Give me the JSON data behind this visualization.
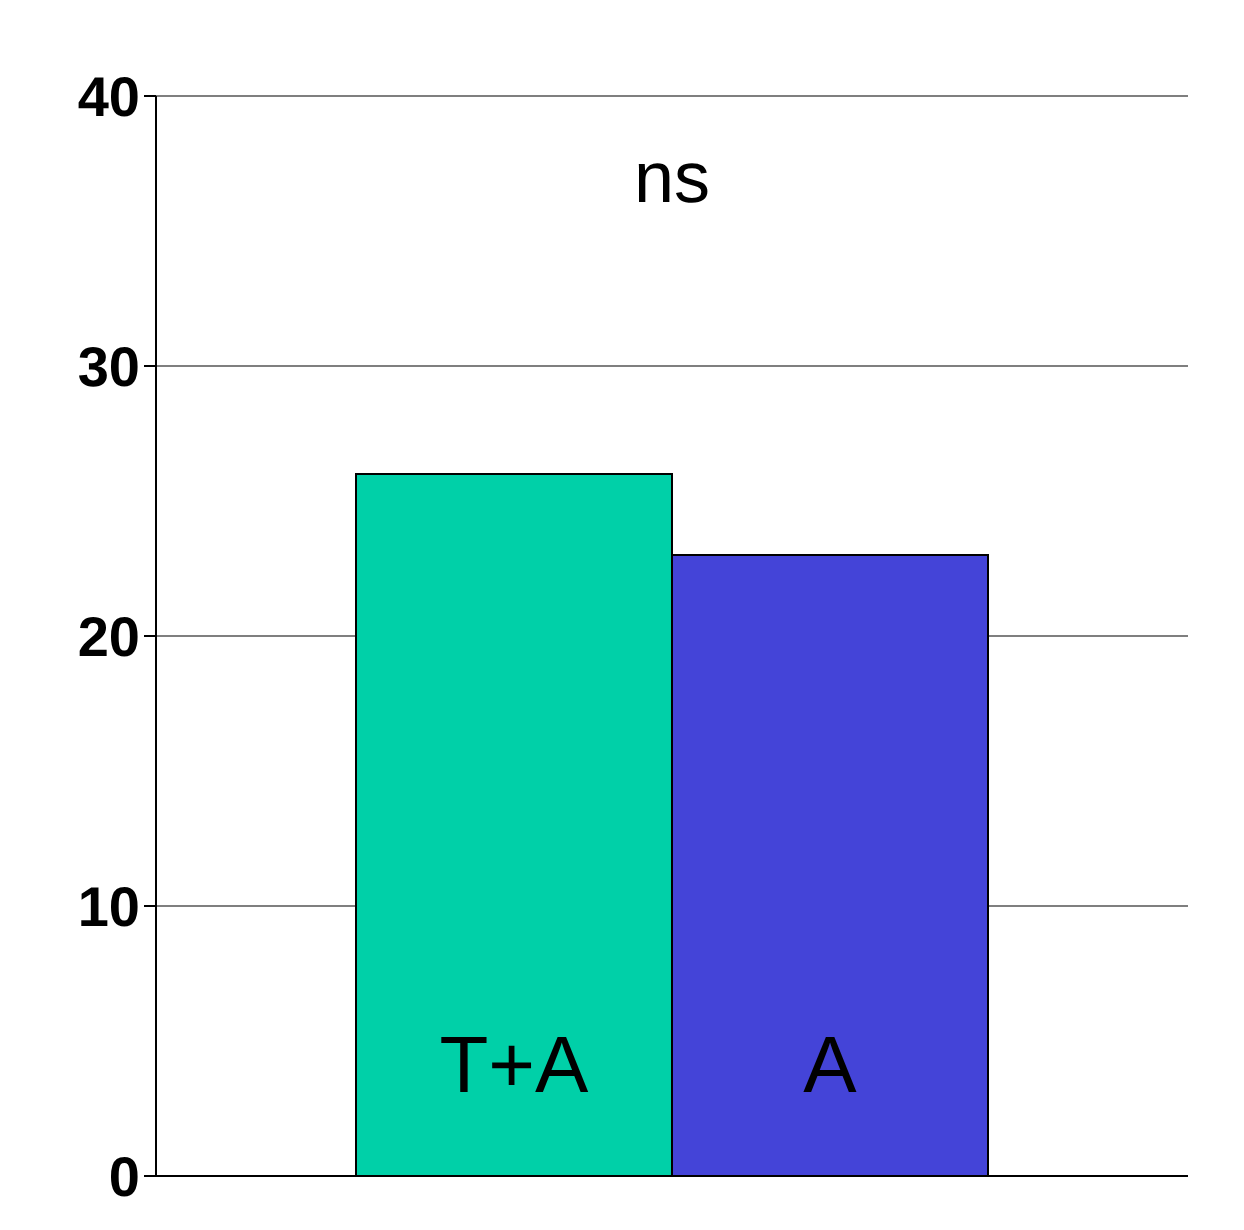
{
  "chart_data": {
    "type": "bar",
    "categories": [
      "T+A",
      "A"
    ],
    "values": [
      26,
      23
    ],
    "colors": [
      "#00d0a8",
      "#4444d8"
    ],
    "ylim": [
      0,
      40
    ],
    "yticks": [
      0,
      10,
      20,
      30,
      40
    ],
    "grid": "y",
    "annotations": [
      "ns"
    ]
  }
}
